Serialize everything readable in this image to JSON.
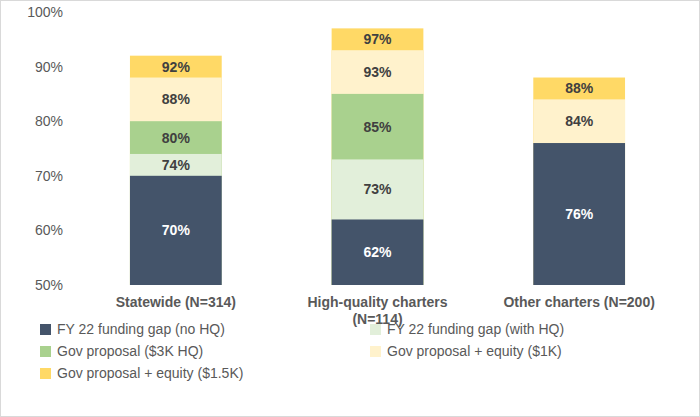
{
  "chart_data": {
    "type": "bar",
    "stacked": false,
    "grid": false,
    "legend": "bottom",
    "data_labels": true,
    "categories": [
      "Statewide (N=314)",
      "High-quality charters (N=114)",
      "Other charters (N=200)"
    ],
    "ylim": [
      50,
      100
    ],
    "yticks": [
      {
        "value": 50,
        "label": "50%"
      },
      {
        "value": 60,
        "label": "60%"
      },
      {
        "value": 70,
        "label": "70%"
      },
      {
        "value": 80,
        "label": "80%"
      },
      {
        "value": 90,
        "label": "90%"
      },
      {
        "value": 100,
        "label": "100%"
      }
    ],
    "series": [
      {
        "name": "FY 22 funding gap (no HQ)",
        "color": "#44546a",
        "values": [
          70,
          62,
          76
        ],
        "value_labels": [
          "70%",
          "62%",
          "76%"
        ]
      },
      {
        "name": "FY 22 funding gap (with HQ)",
        "color": "#e2efda",
        "values": [
          74,
          73,
          null
        ],
        "value_labels": [
          "74%",
          "73%",
          null
        ]
      },
      {
        "name": "Gov proposal ($3K HQ)",
        "color": "#a9d18e",
        "values": [
          80,
          85,
          null
        ],
        "value_labels": [
          "80%",
          "85%",
          null
        ]
      },
      {
        "name": "Gov proposal + equity ($1K)",
        "color": "#fff2cc",
        "values": [
          88,
          93,
          84
        ],
        "value_labels": [
          "88%",
          "93%",
          "84%"
        ]
      },
      {
        "name": "Gov proposal + equity ($1.5K)",
        "color": "#ffd966",
        "values": [
          92,
          97,
          88
        ],
        "value_labels": [
          "92%",
          "97%",
          "88%"
        ]
      }
    ]
  }
}
